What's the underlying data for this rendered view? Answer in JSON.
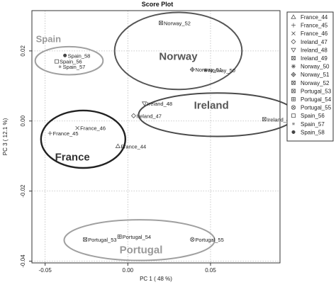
{
  "chart_data": {
    "type": "scatter",
    "title": "Score Plot",
    "xlabel": "PC 1 ( 48 %)",
    "ylabel": "PC 3 ( 12.1 %)",
    "xlim": [
      -0.058,
      0.092
    ],
    "ylim": [
      -0.0405,
      0.0315
    ],
    "xticks": [
      {
        "value": -0.05,
        "label": "-0.05"
      },
      {
        "value": 0.0,
        "label": "0.00"
      },
      {
        "value": 0.05,
        "label": "0.05"
      }
    ],
    "yticks": [
      {
        "value": 0.02,
        "label": "0.02"
      },
      {
        "value": 0.0,
        "label": "0.00"
      },
      {
        "value": -0.02,
        "label": "-0.02"
      },
      {
        "value": -0.04,
        "label": "-0.04"
      }
    ],
    "grid": true,
    "legend_position": "right",
    "points": [
      {
        "name": "France_44",
        "x": -0.006,
        "y": -0.0072,
        "marker": "triangle-up"
      },
      {
        "name": "France_45",
        "x": -0.047,
        "y": -0.0035,
        "marker": "plus"
      },
      {
        "name": "France_46",
        "x": -0.0305,
        "y": -0.002,
        "marker": "x"
      },
      {
        "name": "Ireland_47",
        "x": 0.0035,
        "y": 0.0015,
        "marker": "diamond"
      },
      {
        "name": "Ireland_48",
        "x": 0.01,
        "y": 0.005,
        "marker": "triangle-down"
      },
      {
        "name": "Ireland_49",
        "x": 0.0825,
        "y": 0.0005,
        "marker": "square-x"
      },
      {
        "name": "Norway_50",
        "x": 0.047,
        "y": 0.0145,
        "marker": "star"
      },
      {
        "name": "Norway_51",
        "x": 0.039,
        "y": 0.0147,
        "marker": "diamond-plus"
      },
      {
        "name": "Norway_52",
        "x": 0.02,
        "y": 0.028,
        "marker": "square-x"
      },
      {
        "name": "Portugal_53",
        "x": -0.0258,
        "y": -0.0338,
        "marker": "square-x"
      },
      {
        "name": "Portugal_54",
        "x": -0.005,
        "y": -0.033,
        "marker": "square-plus"
      },
      {
        "name": "Portugal_55",
        "x": 0.039,
        "y": -0.0338,
        "marker": "circle-x"
      },
      {
        "name": "Spain_56",
        "x": -0.043,
        "y": 0.017,
        "marker": "square"
      },
      {
        "name": "Spain_57",
        "x": -0.041,
        "y": 0.0155,
        "marker": "star-small"
      },
      {
        "name": "Spain_58",
        "x": -0.038,
        "y": 0.0187,
        "marker": "filled-circle"
      }
    ],
    "groups": [
      {
        "name": "Spain",
        "cx": -0.0355,
        "cy": 0.0172,
        "rx": 0.0205,
        "ry": 0.004,
        "color": "#a0a0a0",
        "stroke_width": 2,
        "label_x": -0.048,
        "label_y": 0.0225,
        "label_size": 13,
        "label_color": "#9a9a9a"
      },
      {
        "name": "Norway",
        "cx": 0.0305,
        "cy": 0.02,
        "rx": 0.0385,
        "ry": 0.011,
        "color": "#555555",
        "stroke_width": 2,
        "label_x": 0.0305,
        "label_y": 0.0174,
        "label_size": 15,
        "label_color": "#555555"
      },
      {
        "name": "Ireland",
        "cx": 0.054,
        "cy": 0.0018,
        "rx": 0.0475,
        "ry": 0.0062,
        "color": "#4a4a4a",
        "stroke_width": 2,
        "label_x": 0.0505,
        "label_y": 0.0035,
        "label_size": 15,
        "label_color": "#555555"
      },
      {
        "name": "France",
        "cx": -0.027,
        "cy": -0.0052,
        "rx": 0.0255,
        "ry": 0.0082,
        "color": "#222222",
        "stroke_width": 2.4,
        "label_x": -0.0335,
        "label_y": -0.0113,
        "label_size": 15,
        "label_color": "#333333"
      },
      {
        "name": "Portugal",
        "cx": 0.007,
        "cy": -0.034,
        "rx": 0.0455,
        "ry": 0.0058,
        "color": "#a0a0a0",
        "stroke_width": 2,
        "label_x": 0.008,
        "label_y": -0.0378,
        "label_size": 15,
        "label_color": "#9a9a9a"
      }
    ],
    "legend": [
      "France_44",
      "France_45",
      "France_46",
      "Ireland_47",
      "Ireland_48",
      "Ireland_49",
      "Norway_50",
      "Norway_51",
      "Norway_52",
      "Portugal_53",
      "Portugal_54",
      "Portugal_55",
      "Spain_56",
      "Spain_57",
      "Spain_58"
    ]
  }
}
